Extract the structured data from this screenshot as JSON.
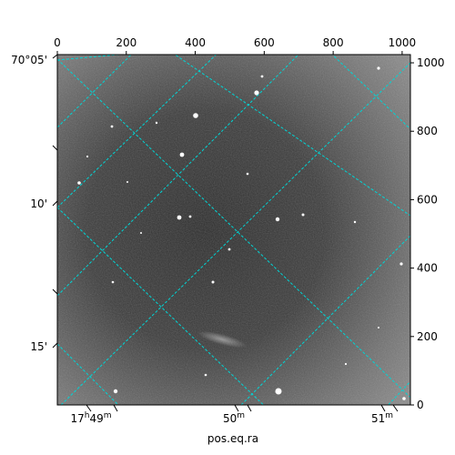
{
  "chart_data": {
    "type": "image",
    "xlabel": "pos.eq.ra",
    "ylabel": "",
    "x_pixel_axis": {
      "range": [
        0,
        1024
      ],
      "ticks": [
        "0",
        "200",
        "400",
        "600",
        "800",
        "1000"
      ],
      "position": "top"
    },
    "y_pixel_axis": {
      "range": [
        0,
        1024
      ],
      "ticks": [
        "0",
        "200",
        "400",
        "600",
        "800",
        "1000"
      ],
      "position": "right"
    },
    "ra_ticks": [
      {
        "h": "17",
        "m": "49",
        "text": "17h49m"
      },
      {
        "h": "",
        "m": "50",
        "text": "50m"
      },
      {
        "h": "",
        "m": "51",
        "text": "51m"
      }
    ],
    "dec_ticks": [
      "70°05'",
      "10'",
      "15'"
    ],
    "grid": true,
    "grid_color": "#00d5d5",
    "colormap": "gray"
  }
}
